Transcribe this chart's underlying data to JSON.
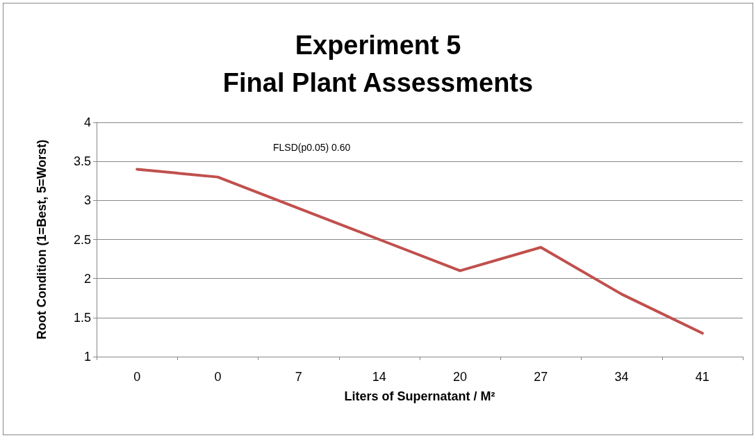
{
  "chart_data": {
    "type": "line",
    "title": "Experiment 5\nFinal Plant Assessments",
    "xlabel": "Liters of Supernatant / M²",
    "ylabel": "Root Condition (1=Best, 5=Worst)",
    "categories": [
      "0",
      "0",
      "7",
      "14",
      "20",
      "27",
      "34",
      "41"
    ],
    "series": [
      {
        "color": "#c0504d",
        "values": [
          3.4,
          3.3,
          2.9,
          2.5,
          2.1,
          2.4,
          1.8,
          1.3
        ]
      }
    ],
    "ylim": [
      1,
      4
    ],
    "yticks": [
      1,
      1.5,
      2,
      2.5,
      3,
      3.5,
      4
    ],
    "grid": "y",
    "marker": "none",
    "line_style": "solid",
    "annotations": [
      "FLSD(p0.05) 0.60"
    ]
  }
}
